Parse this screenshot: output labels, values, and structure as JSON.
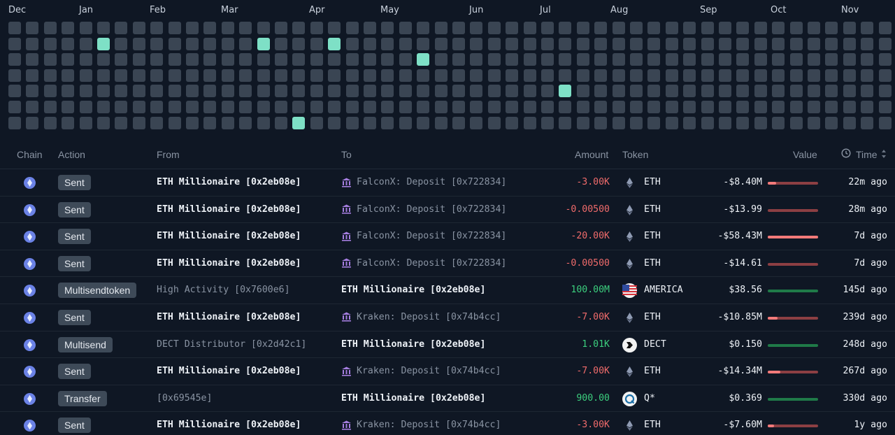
{
  "heatmap": {
    "months": [
      "Dec",
      "Jan",
      "Feb",
      "Mar",
      "Apr",
      "May",
      "Jun",
      "Jul",
      "Aug",
      "Sep",
      "Oct",
      "Nov"
    ],
    "weeks": 50,
    "days": 7,
    "active": [
      [
        5,
        1
      ],
      [
        14,
        1
      ],
      [
        18,
        1
      ],
      [
        23,
        2
      ],
      [
        31,
        4
      ],
      [
        16,
        6
      ]
    ]
  },
  "table": {
    "headers": {
      "chain": "Chain",
      "action": "Action",
      "from": "From",
      "to": "To",
      "amount": "Amount",
      "token": "Token",
      "value": "Value",
      "time": "Time"
    },
    "rows": [
      {
        "action": "Sent",
        "from": "ETH Millionaire [0x2eb08e]",
        "from_bright": true,
        "to": "FalconX: Deposit [0x722834]",
        "to_bright": false,
        "to_bank": true,
        "amount": "-3.00K",
        "amount_sign": "neg",
        "token": "ETH",
        "token_icon": "eth",
        "value": "-$8.40M",
        "bar": "red",
        "bar_fill": 0.16,
        "time": "22m ago"
      },
      {
        "action": "Sent",
        "from": "ETH Millionaire [0x2eb08e]",
        "from_bright": true,
        "to": "FalconX: Deposit [0x722834]",
        "to_bright": false,
        "to_bank": true,
        "amount": "-0.00500",
        "amount_sign": "neg",
        "token": "ETH",
        "token_icon": "eth",
        "value": "-$13.99",
        "bar": "red",
        "bar_fill": 0,
        "time": "28m ago"
      },
      {
        "action": "Sent",
        "from": "ETH Millionaire [0x2eb08e]",
        "from_bright": true,
        "to": "FalconX: Deposit [0x722834]",
        "to_bright": false,
        "to_bank": true,
        "amount": "-20.00K",
        "amount_sign": "neg",
        "token": "ETH",
        "token_icon": "eth",
        "value": "-$58.43M",
        "bar": "red",
        "bar_fill": 1,
        "time": "7d ago"
      },
      {
        "action": "Sent",
        "from": "ETH Millionaire [0x2eb08e]",
        "from_bright": true,
        "to": "FalconX: Deposit [0x722834]",
        "to_bright": false,
        "to_bank": true,
        "amount": "-0.00500",
        "amount_sign": "neg",
        "token": "ETH",
        "token_icon": "eth",
        "value": "-$14.61",
        "bar": "red",
        "bar_fill": 0,
        "time": "7d ago"
      },
      {
        "action": "Multisendtoken",
        "from": "High Activity [0x7600e6]",
        "from_bright": false,
        "to": "ETH Millionaire [0x2eb08e]",
        "to_bright": true,
        "to_bank": false,
        "amount": "100.00M",
        "amount_sign": "pos",
        "token": "AMERICA",
        "token_icon": "flag",
        "value": "$38.56",
        "bar": "green",
        "bar_fill": 0,
        "time": "145d ago"
      },
      {
        "action": "Sent",
        "from": "ETH Millionaire [0x2eb08e]",
        "from_bright": true,
        "to": "Kraken: Deposit [0x74b4cc]",
        "to_bright": false,
        "to_bank": true,
        "amount": "-7.00K",
        "amount_sign": "neg",
        "token": "ETH",
        "token_icon": "eth",
        "value": "-$10.85M",
        "bar": "red",
        "bar_fill": 0.19,
        "time": "239d ago"
      },
      {
        "action": "Multisend",
        "from": "DECT Distributor [0x2d42c1]",
        "from_bright": false,
        "to": "ETH Millionaire [0x2eb08e]",
        "to_bright": true,
        "to_bank": false,
        "amount": "1.01K",
        "amount_sign": "pos",
        "token": "DECT",
        "token_icon": "dect",
        "value": "$0.150",
        "bar": "green",
        "bar_fill": 0,
        "time": "248d ago"
      },
      {
        "action": "Sent",
        "from": "ETH Millionaire [0x2eb08e]",
        "from_bright": true,
        "to": "Kraken: Deposit [0x74b4cc]",
        "to_bright": false,
        "to_bank": true,
        "amount": "-7.00K",
        "amount_sign": "neg",
        "token": "ETH",
        "token_icon": "eth",
        "value": "-$14.34M",
        "bar": "red",
        "bar_fill": 0.25,
        "time": "267d ago"
      },
      {
        "action": "Transfer",
        "from": "[0x69545e]",
        "from_bright": false,
        "to": "ETH Millionaire [0x2eb08e]",
        "to_bright": true,
        "to_bank": false,
        "amount": "900.00",
        "amount_sign": "pos",
        "token": "Q*",
        "token_icon": "q",
        "value": "$0.369",
        "bar": "green",
        "bar_fill": 0,
        "time": "330d ago"
      },
      {
        "action": "Sent",
        "from": "ETH Millionaire [0x2eb08e]",
        "from_bright": true,
        "to": "Kraken: Deposit [0x74b4cc]",
        "to_bright": false,
        "to_bank": true,
        "amount": "-3.00K",
        "amount_sign": "neg",
        "token": "ETH",
        "token_icon": "eth",
        "value": "-$7.60M",
        "bar": "red",
        "bar_fill": 0.13,
        "time": "1y ago"
      }
    ]
  },
  "colors": {
    "accent": "#7ee0c6",
    "negative": "#f06b6b",
    "positive": "#3ccf7e",
    "background": "#0f1724"
  }
}
